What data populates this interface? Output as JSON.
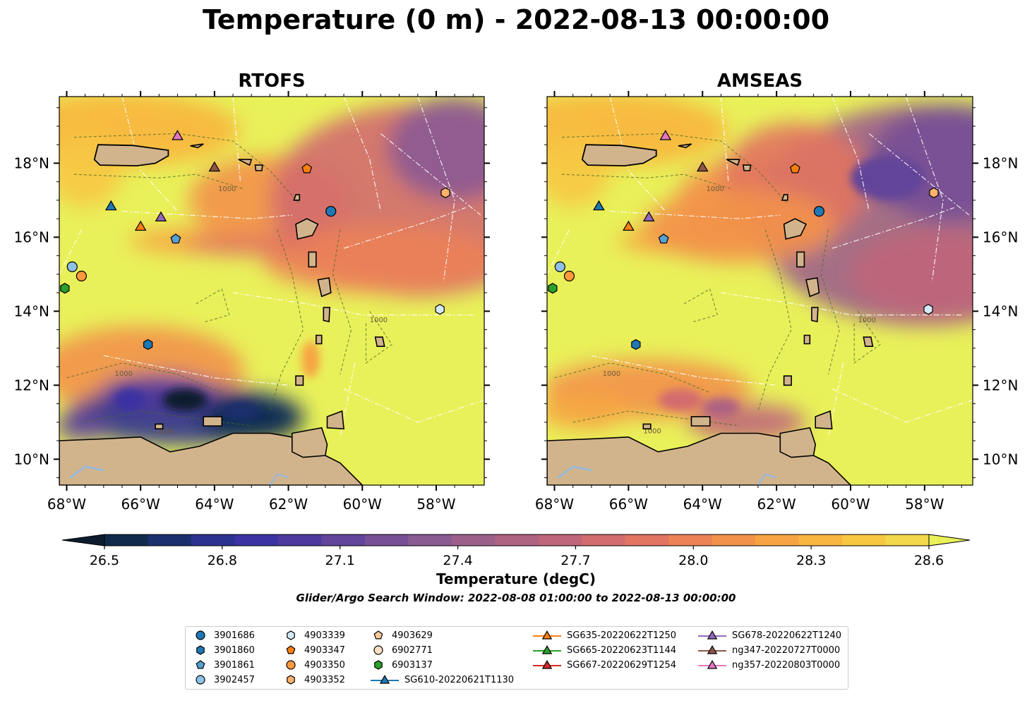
{
  "title": "Temperature (0 m) - 2022-08-13 00:00:00",
  "panels": [
    {
      "title": "RTOFS"
    },
    {
      "title": "AMSEAS"
    }
  ],
  "colorbar": {
    "label": "Temperature (degC)",
    "ticks": [
      "26.5",
      "26.8",
      "27.1",
      "27.4",
      "27.7",
      "28.0",
      "28.3",
      "28.6"
    ],
    "colors": [
      "#0d1b2e",
      "#102a4c",
      "#1b2f6e",
      "#2b3290",
      "#3b33a3",
      "#4e3a9e",
      "#62459a",
      "#764f96",
      "#8a5a92",
      "#9c5f8a",
      "#ae6282",
      "#c0667a",
      "#d26c6e",
      "#e17561",
      "#ec8256",
      "#f2924a",
      "#f6a443",
      "#f8b53f",
      "#f7c742",
      "#f2d84a",
      "#e9f15a"
    ]
  },
  "search_window": "Glider/Argo Search Window: 2022-08-08 01:00:00 to 2022-08-13 00:00:00",
  "axes": {
    "x_ticks": [
      "68°W",
      "66°W",
      "64°W",
      "62°W",
      "60°W",
      "58°W"
    ],
    "y_ticks": [
      "18°N",
      "16°N",
      "14°N",
      "12°N",
      "10°N"
    ]
  },
  "contour_label": "1000",
  "chart_data": {
    "type": "heatmap",
    "title": "Temperature (0 m) - 2022-08-13 00:00:00",
    "colorbar_label": "Temperature (degC)",
    "vmin": 26.5,
    "vmax": 28.6,
    "xlim": [
      -68.2,
      -56.7
    ],
    "ylim": [
      9.3,
      19.8
    ],
    "markers": [
      {
        "name": "3901686",
        "shape": "circle",
        "color": "#1f77b4",
        "lon": -60.85,
        "lat": 16.7
      },
      {
        "name": "3901860",
        "shape": "hexagon",
        "color": "#1f77b4",
        "lon": -65.8,
        "lat": 13.1
      },
      {
        "name": "3901861",
        "shape": "pentagon",
        "color": "#57a0d3",
        "lon": -65.05,
        "lat": 15.95
      },
      {
        "name": "3902457",
        "shape": "circle",
        "color": "#8ec1e6",
        "lon": -67.85,
        "lat": 15.2
      },
      {
        "name": "4903339",
        "shape": "hexagon",
        "color": "#d5eaf8",
        "lon": -57.9,
        "lat": 14.05
      },
      {
        "name": "4903347",
        "shape": "pentagon",
        "color": "#ff7f0e",
        "lon": -61.5,
        "lat": 17.85
      },
      {
        "name": "4903350",
        "shape": "circle",
        "color": "#ff9a3c",
        "lon": -67.6,
        "lat": 14.95
      },
      {
        "name": "4903352",
        "shape": "hexagon",
        "color": "#ffb26b",
        "lon": -57.75,
        "lat": 17.2
      },
      {
        "name": "4903629",
        "shape": "pentagon",
        "color": "#ffc99a",
        "lon": null,
        "lat": null
      },
      {
        "name": "6902771",
        "shape": "circle",
        "color": "#ffe0c4",
        "lon": null,
        "lat": null
      },
      {
        "name": "6903137",
        "shape": "hexagon",
        "color": "#2ca02c",
        "lon": -68.05,
        "lat": 14.62
      },
      {
        "name": "SG610-20220621T1130",
        "shape": "triangle",
        "color": "#1f77b4",
        "lon": -66.8,
        "lat": 16.85
      },
      {
        "name": "SG635-20220622T1250",
        "shape": "triangle",
        "color": "#ff7f0e",
        "lon": -66.0,
        "lat": 16.3
      },
      {
        "name": "SG665-20220623T1144",
        "shape": "triangle",
        "color": "#2ca02c",
        "lon": null,
        "lat": null
      },
      {
        "name": "SG667-20220629T1254",
        "shape": "triangle",
        "color": "#d62728",
        "lon": null,
        "lat": null
      },
      {
        "name": "SG678-20220622T1240",
        "shape": "triangle",
        "color": "#9467bd",
        "lon": -65.45,
        "lat": 16.55
      },
      {
        "name": "ng347-20220727T0000",
        "shape": "triangle",
        "color": "#8c564b",
        "lon": -64.0,
        "lat": 17.9
      },
      {
        "name": "ng357-20220803T0000",
        "shape": "triangle",
        "color": "#e377c2",
        "lon": -65.0,
        "lat": 18.75
      }
    ]
  },
  "legend": {
    "columns": [
      [
        "3901686",
        "3901860",
        "3901861",
        "3902457"
      ],
      [
        "4903339",
        "4903347",
        "4903350",
        "4903352"
      ],
      [
        "4903629",
        "6902771",
        "6903137",
        "SG610-20220621T1130"
      ],
      [
        "SG635-20220622T1250",
        "SG665-20220623T1144",
        "SG667-20220629T1254"
      ],
      [
        "SG678-20220622T1240",
        "ng347-20220727T0000",
        "ng357-20220803T0000"
      ]
    ]
  }
}
